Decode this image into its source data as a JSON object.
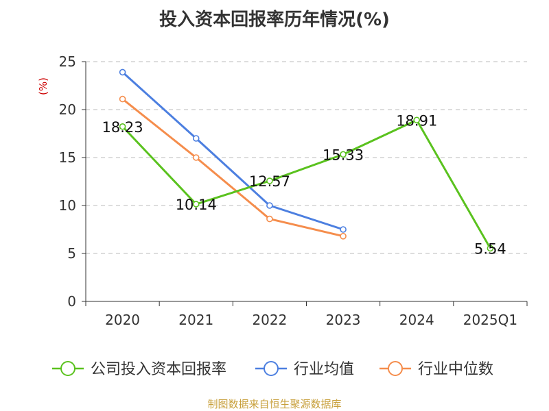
{
  "colors": {
    "company": "#5ac21e",
    "industry_avg": "#4c7fe0",
    "industry_median": "#f58d4c",
    "grid": "#bbbbbb",
    "axis": "#333333",
    "ylabel": "#cc0000",
    "source": "#c8a03c"
  },
  "footer": {
    "source": "制图数据来自恒生聚源数据库"
  },
  "chart_data": {
    "type": "line",
    "title": "投入资本回报率历年情况(%)",
    "ylabel": "(%)",
    "xlabel": "",
    "ylim": [
      0,
      25
    ],
    "yticks": [
      0,
      5,
      10,
      15,
      20,
      25
    ],
    "categories": [
      "2020",
      "2021",
      "2022",
      "2023",
      "2024",
      "2025Q1"
    ],
    "grid": true,
    "legend_position": "bottom",
    "series": [
      {
        "name": "公司投入资本回报率",
        "color_key": "company",
        "values": [
          18.23,
          10.14,
          12.57,
          15.33,
          18.91,
          5.54
        ],
        "labels": [
          "18.23",
          "10.14",
          "12.57",
          "15.33",
          "18.91",
          "5.54"
        ]
      },
      {
        "name": "行业均值",
        "color_key": "industry_avg",
        "values": [
          23.9,
          17.0,
          10.0,
          7.5,
          null,
          null
        ],
        "labels": []
      },
      {
        "name": "行业中位数",
        "color_key": "industry_median",
        "values": [
          21.1,
          15.0,
          8.6,
          6.8,
          null,
          null
        ],
        "labels": []
      }
    ]
  }
}
